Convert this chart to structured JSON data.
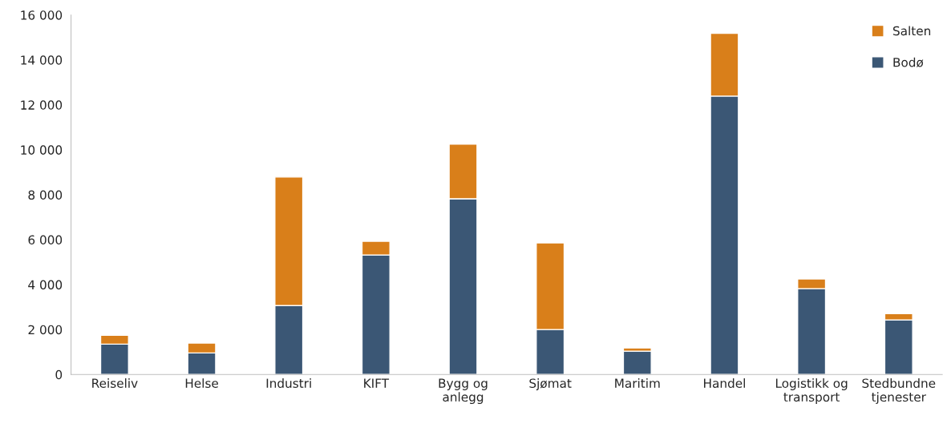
{
  "chart_data": {
    "type": "bar",
    "stacked": true,
    "categories": [
      "Reiseliv",
      "Helse",
      "Industri",
      "KIFT",
      "Bygg og\nanlegg",
      "Sjømat",
      "Maritim",
      "Handel",
      "Logistikk og\ntransport",
      "Stedbundne\ntjenester"
    ],
    "series": [
      {
        "name": "Bodø",
        "color": "#3b5775",
        "values": [
          1350,
          960,
          3070,
          5320,
          7820,
          2000,
          1040,
          12390,
          3820,
          2430
        ]
      },
      {
        "name": "Salten",
        "color": "#d97f1a",
        "values": [
          400,
          440,
          5720,
          610,
          2430,
          3860,
          140,
          2790,
          430,
          280
        ]
      }
    ],
    "ylim": [
      0,
      16000
    ],
    "yticks": [
      0,
      {
        "value": 2000,
        "label": "2 000"
      },
      {
        "value": 4000,
        "label": "4 000"
      },
      {
        "value": 6000,
        "label": "6 000"
      },
      {
        "value": 8000,
        "label": "8 000"
      },
      {
        "value": 10000,
        "label": "10 000"
      },
      {
        "value": 12000,
        "label": "12 000"
      },
      {
        "value": 14000,
        "label": "14 000"
      },
      {
        "value": 16000,
        "label": "16 000"
      }
    ],
    "grid": false,
    "legend": "top right"
  }
}
